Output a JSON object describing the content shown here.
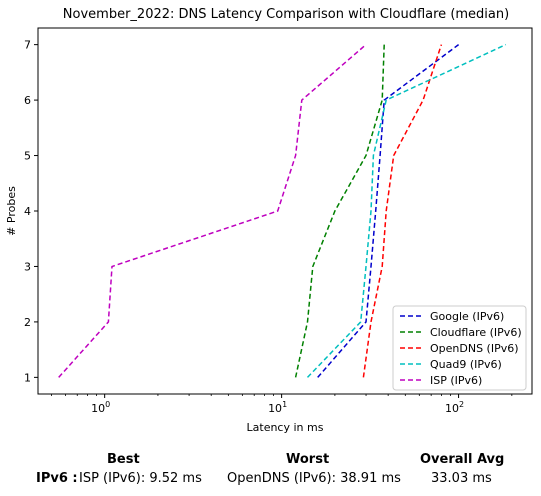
{
  "chart_data": {
    "type": "line",
    "title": "November_2022: DNS Latency Comparison with Cloudflare (median)",
    "xlabel": "Latency in ms",
    "ylabel": "# Probes",
    "xscale": "log",
    "xlim": [
      0.42,
      260
    ],
    "ylim": [
      0.7,
      7.3
    ],
    "xticks": [
      {
        "value": 1,
        "label": "10",
        "exp": "0"
      },
      {
        "value": 10,
        "label": "10",
        "exp": "1"
      },
      {
        "value": 100,
        "label": "10",
        "exp": "2"
      }
    ],
    "yticks": [
      1,
      2,
      3,
      4,
      5,
      6,
      7
    ],
    "grid": false,
    "legend_position": "lower-right",
    "series": [
      {
        "name": "Google (IPv6)",
        "color": "#0000cc",
        "x": [
          16,
          30,
          32,
          34,
          36,
          38,
          100
        ],
        "y": [
          1,
          2,
          3,
          4,
          5,
          6,
          7
        ]
      },
      {
        "name": "Cloudflare (IPv6)",
        "color": "#008000",
        "x": [
          12,
          14,
          15,
          20,
          30,
          37,
          38
        ],
        "y": [
          1,
          2,
          3,
          4,
          5,
          6,
          7
        ]
      },
      {
        "name": "OpenDNS (IPv6)",
        "color": "#ff0000",
        "x": [
          29,
          32,
          37,
          39,
          43,
          63,
          80
        ],
        "y": [
          1,
          2,
          3,
          4,
          5,
          6,
          7
        ]
      },
      {
        "name": "Quad9 (IPv6)",
        "color": "#00bfbf",
        "x": [
          14,
          28,
          30,
          32,
          33,
          39,
          185
        ],
        "y": [
          1,
          2,
          3,
          4,
          5,
          6,
          7
        ]
      },
      {
        "name": "ISP (IPv6)",
        "color": "#bf00bf",
        "x": [
          0.55,
          1.05,
          1.1,
          9.5,
          12,
          13,
          30
        ],
        "y": [
          1,
          2,
          3,
          4,
          5,
          6,
          7
        ]
      }
    ]
  },
  "summary": {
    "headers": {
      "best": "Best",
      "worst": "Worst",
      "avg": "Overall Avg"
    },
    "row_label": "IPv6 :",
    "best": "ISP (IPv6): 9.52 ms",
    "worst": "OpenDNS (IPv6): 38.91 ms",
    "avg": "33.03 ms"
  }
}
